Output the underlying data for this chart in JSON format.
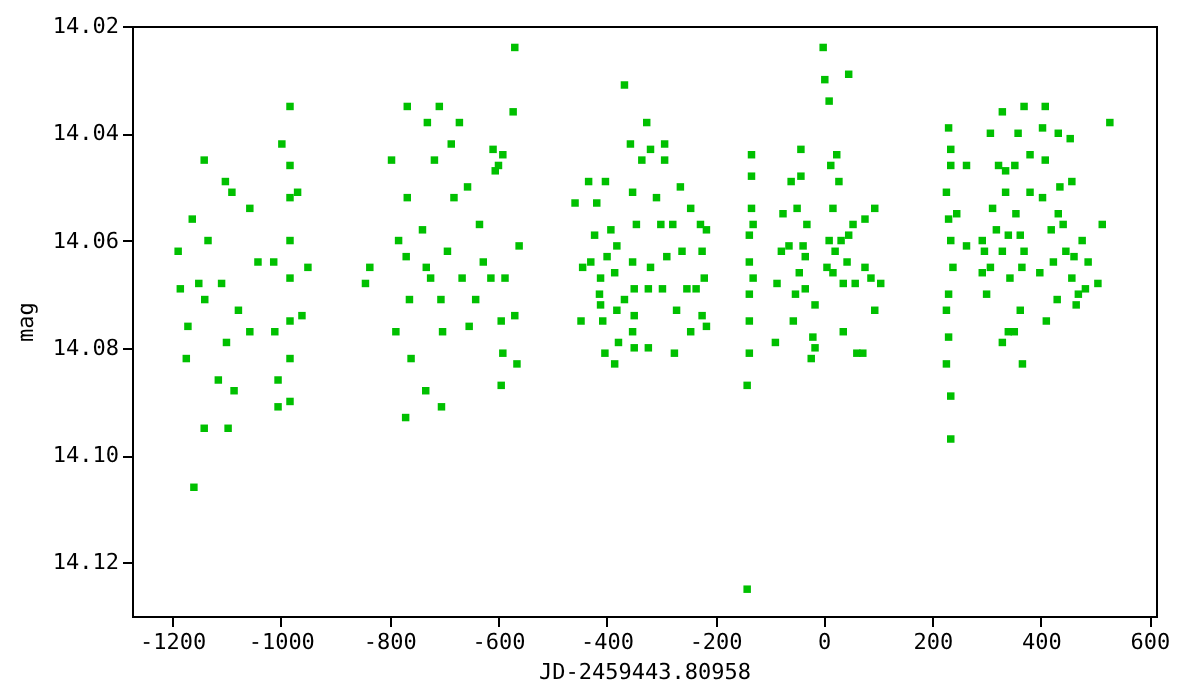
{
  "chart_data": {
    "type": "scatter",
    "xlabel": "JD-2459443.80958",
    "ylabel": "mag",
    "xlim": [
      -1274,
      612
    ],
    "xticks": [
      -1200,
      -1000,
      -800,
      -600,
      -400,
      -200,
      0,
      200,
      400,
      600
    ],
    "ylim": [
      14.13,
      14.02
    ],
    "yticks": [
      {
        "value": 14.02,
        "label": "14.02"
      },
      {
        "value": 14.04,
        "label": "14.04"
      },
      {
        "value": 14.06,
        "label": "14.06"
      },
      {
        "value": 14.08,
        "label": "14.08"
      },
      {
        "value": 14.1,
        "label": "14.10"
      },
      {
        "value": 14.12,
        "label": "14.12"
      }
    ],
    "grid": false,
    "marker": "square",
    "series": [
      {
        "color": "#00c000",
        "x": [
          -1141,
          -1160,
          -1141,
          -1097,
          -1189,
          -1185,
          -1174,
          -1171,
          -1163,
          -1102,
          -1090,
          -1115,
          -1086,
          -1057,
          -1042,
          -1057,
          -1134,
          -1109,
          -1078,
          -1151,
          -1100,
          -1140,
          -983,
          -983,
          -983,
          -983,
          -983,
          -983,
          -983,
          -983,
          -998,
          -1005,
          -969,
          -950,
          -961,
          -1013,
          -1005,
          -1011,
          -770,
          -767,
          -708,
          -704,
          -844,
          -836,
          -796,
          -788,
          -783,
          -767,
          -763,
          -760,
          -733,
          -730,
          -739,
          -724,
          -717,
          -702,
          -693,
          -686,
          -681,
          -671,
          -666,
          -656,
          -641,
          -634,
          -627,
          -653,
          -705,
          -732,
          -769,
          -569,
          -572,
          -609,
          -591,
          -599,
          -605,
          -561,
          -613,
          -587,
          -569,
          -594,
          -591,
          -565,
          -594,
          -367,
          -326,
          -356,
          -319,
          -293,
          -335,
          -293,
          -433,
          -458,
          -402,
          -352,
          -308,
          -264,
          -245,
          -418,
          -392,
          -422,
          -345,
          -300,
          -227,
          -216,
          -278,
          -444,
          -429,
          -399,
          -381,
          -352,
          -319,
          -289,
          -261,
          -224,
          -220,
          -235,
          -252,
          -297,
          -323,
          -349,
          -385,
          -411,
          -413,
          -367,
          -411,
          -381,
          -447,
          -407,
          -349,
          -271,
          -224,
          -216,
          -245,
          -352,
          -378,
          -349,
          -323,
          -403,
          -385,
          -275,
          -141,
          -141,
          -133,
          -133,
          -133,
          -137,
          -137,
          -137,
          -137,
          -137,
          -130,
          -130,
          -1,
          2,
          46,
          10,
          -42,
          24,
          13,
          28,
          -60,
          -42,
          94,
          17,
          -49,
          -75,
          -31,
          54,
          76,
          10,
          32,
          46,
          -64,
          -38,
          -78,
          21,
          -34,
          43,
          6,
          76,
          -45,
          17,
          -86,
          36,
          58,
          87,
          105,
          -52,
          -34,
          -16,
          94,
          -56,
          36,
          -89,
          -20,
          -16,
          -23,
          72,
          61,
          234,
          234,
          230,
          234,
          234,
          226,
          230,
          234,
          238,
          230,
          226,
          230,
          226,
          263,
          245,
          263,
          369,
          408,
          527,
          329,
          307,
          358,
          403,
          432,
          454,
          380,
          408,
          322,
          352,
          335,
          457,
          435,
          335,
          380,
          403,
          311,
          354,
          432,
          318,
          419,
          441,
          513,
          292,
          340,
          362,
          476,
          296,
          329,
          369,
          446,
          423,
          461,
          487,
          307,
          365,
          398,
          292,
          343,
          457,
          505,
          300,
          482,
          469,
          430,
          465,
          362,
          410,
          340,
          351,
          329,
          366
        ],
        "values": [
          14.045,
          14.106,
          14.095,
          14.095,
          14.062,
          14.069,
          14.082,
          14.076,
          14.056,
          14.049,
          14.051,
          14.086,
          14.088,
          14.054,
          14.064,
          14.077,
          14.06,
          14.068,
          14.073,
          14.068,
          14.079,
          14.071,
          14.035,
          14.046,
          14.052,
          14.06,
          14.067,
          14.075,
          14.082,
          14.09,
          14.042,
          14.091,
          14.051,
          14.065,
          14.074,
          14.064,
          14.086,
          14.077,
          14.093,
          14.035,
          14.035,
          14.091,
          14.068,
          14.065,
          14.045,
          14.077,
          14.06,
          14.052,
          14.071,
          14.082,
          14.088,
          14.038,
          14.058,
          14.067,
          14.045,
          14.077,
          14.062,
          14.042,
          14.052,
          14.038,
          14.067,
          14.05,
          14.071,
          14.057,
          14.064,
          14.076,
          14.071,
          14.065,
          14.063,
          14.024,
          14.036,
          14.043,
          14.044,
          14.046,
          14.047,
          14.061,
          14.067,
          14.067,
          14.074,
          14.075,
          14.081,
          14.083,
          14.087,
          14.031,
          14.038,
          14.042,
          14.043,
          14.042,
          14.045,
          14.045,
          14.049,
          14.053,
          14.049,
          14.051,
          14.052,
          14.05,
          14.054,
          14.053,
          14.058,
          14.059,
          14.057,
          14.057,
          14.057,
          14.058,
          14.057,
          14.065,
          14.064,
          14.063,
          14.061,
          14.064,
          14.065,
          14.063,
          14.062,
          14.062,
          14.067,
          14.069,
          14.069,
          14.069,
          14.069,
          14.069,
          14.066,
          14.067,
          14.07,
          14.071,
          14.072,
          14.073,
          14.075,
          14.075,
          14.074,
          14.073,
          14.074,
          14.076,
          14.077,
          14.077,
          14.079,
          14.08,
          14.08,
          14.081,
          14.083,
          14.081,
          14.087,
          14.125,
          14.044,
          14.048,
          14.054,
          14.059,
          14.064,
          14.07,
          14.075,
          14.081,
          14.067,
          14.057,
          14.024,
          14.03,
          14.029,
          14.034,
          14.043,
          14.044,
          14.046,
          14.049,
          14.049,
          14.048,
          14.054,
          14.054,
          14.054,
          14.055,
          14.057,
          14.057,
          14.056,
          14.06,
          14.06,
          14.059,
          14.061,
          14.061,
          14.062,
          14.062,
          14.063,
          14.064,
          14.065,
          14.065,
          14.066,
          14.066,
          14.068,
          14.068,
          14.068,
          14.067,
          14.068,
          14.07,
          14.069,
          14.072,
          14.073,
          14.075,
          14.077,
          14.079,
          14.078,
          14.08,
          14.082,
          14.081,
          14.081,
          14.097,
          14.089,
          14.039,
          14.043,
          14.046,
          14.051,
          14.056,
          14.06,
          14.065,
          14.07,
          14.073,
          14.078,
          14.083,
          14.046,
          14.055,
          14.061,
          14.035,
          14.035,
          14.038,
          14.036,
          14.04,
          14.04,
          14.039,
          14.04,
          14.041,
          14.044,
          14.045,
          14.046,
          14.046,
          14.047,
          14.049,
          14.05,
          14.051,
          14.051,
          14.052,
          14.054,
          14.055,
          14.055,
          14.058,
          14.058,
          14.057,
          14.057,
          14.06,
          14.059,
          14.059,
          14.06,
          14.062,
          14.062,
          14.062,
          14.062,
          14.064,
          14.063,
          14.064,
          14.065,
          14.065,
          14.066,
          14.066,
          14.067,
          14.067,
          14.068,
          14.07,
          14.069,
          14.07,
          14.071,
          14.072,
          14.073,
          14.075,
          14.077,
          14.077,
          14.079,
          14.083
        ]
      }
    ]
  }
}
